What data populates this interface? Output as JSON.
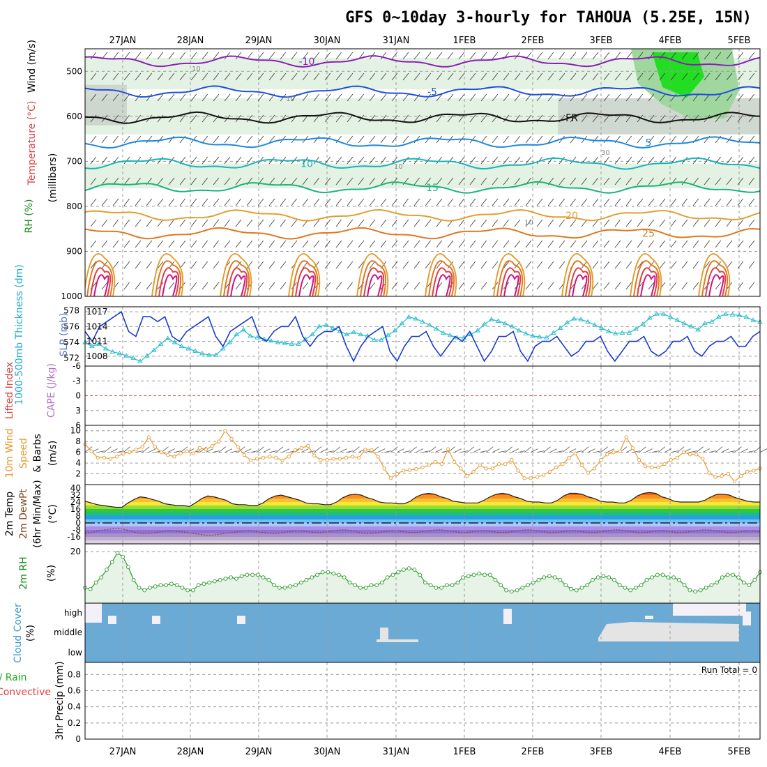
{
  "title": "GFS 0~10day 3-hourly for TAHOUA (5.25E, 15N)",
  "dates": [
    "27JAN",
    "28JAN",
    "29JAN",
    "30JAN",
    "31JAN",
    "1FEB",
    "2FEB",
    "3FEB",
    "4FEB",
    "5FEB"
  ],
  "colors": {
    "grid": "#999999",
    "rh_light": "#e4f2e4",
    "rh_mid": "#9fd79f",
    "rh_bright": "#22dd22",
    "rh_gray": "#c8cfc8",
    "slp": "#1a3acc",
    "thick": "#22bbcc",
    "wind10": "#e89a30",
    "rh2m": "#2a9a2a",
    "rh2m_fill": "#e6f3e6",
    "cloud": "#6aaad4",
    "cloud_empty": "#f3f0f8",
    "cloud_gap": "#e4e4e4",
    "zero_line": "#e05050"
  },
  "chart_data": [
    {
      "id": "upper_air",
      "type": "heatmap",
      "ylabel_parts": {
        "rh": "RH (%)",
        "mb": "(millibars)",
        "temp": "Temperature (°C)",
        "wind": "Wind (m/s)"
      },
      "ylim": [
        1000,
        450
      ],
      "yticks": [
        "500",
        "600",
        "700",
        "800",
        "900",
        "1000"
      ],
      "yticks_values": [
        500,
        600,
        700,
        800,
        900,
        1000
      ],
      "isotherms": [
        {
          "label": "-10",
          "color": "#8a1fb8",
          "level_mb": 478
        },
        {
          "label": "-5",
          "color": "#2050d8",
          "level_mb": 545
        },
        {
          "label": "FR",
          "color": "#111111",
          "level_mb": 603
        },
        {
          "label": "5",
          "color": "#1f88e0",
          "level_mb": 658
        },
        {
          "label": "10",
          "color": "#18b4b4",
          "level_mb": 705
        },
        {
          "label": "15",
          "color": "#18b478",
          "level_mb": 758
        },
        {
          "label": "20",
          "color": "#e0a030",
          "level_mb": 820
        },
        {
          "label": "25",
          "color": "#e07820",
          "level_mb": 860
        }
      ],
      "rh_labels": [
        "10",
        "10",
        "10",
        "30",
        "10"
      ]
    },
    {
      "id": "slp_thickness",
      "type": "line",
      "ylabel_left": "1000-500mb Thickness (dm)",
      "ylabel_right": "SLP (mb)",
      "yticks_left": [
        "578",
        "576",
        "574",
        "572"
      ],
      "yticks_right": [
        "1017",
        "1014",
        "1011",
        "1008"
      ],
      "thickness_ylim": [
        571,
        578.5
      ],
      "slp_ylim": [
        1006,
        1018
      ],
      "series": [
        {
          "id": "slp",
          "values": [
            1013,
            1011,
            1014,
            1015,
            1016,
            1017,
            1013,
            1012,
            1016,
            1016,
            1015,
            1016,
            1012,
            1011,
            1013,
            1014,
            1015,
            1016,
            1012,
            1010,
            1013,
            1014,
            1015,
            1016,
            1012,
            1011,
            1013,
            1014,
            1014,
            1016,
            1012,
            1010,
            1012,
            1013,
            1013,
            1014,
            1010,
            1007,
            1010,
            1012,
            1013,
            1014,
            1009,
            1007,
            1010,
            1012,
            1012,
            1013,
            1010,
            1008,
            1010,
            1012,
            1011,
            1013,
            1010,
            1007,
            1009,
            1012,
            1012,
            1013,
            1009,
            1007,
            1010,
            1011,
            1011,
            1012,
            1010,
            1008,
            1009,
            1011,
            1011,
            1012,
            1009,
            1007,
            1009,
            1011,
            1011,
            1012,
            1009,
            1008,
            1009,
            1011,
            1011,
            1012,
            1009,
            1008,
            1010,
            1011,
            1011,
            1012,
            1010,
            1010,
            1012,
            1013
          ]
        },
        {
          "id": "thickness",
          "values": [
            574.0,
            573.5,
            573.8,
            573.2,
            572.8,
            572.6,
            572.3,
            572.0,
            571.6,
            572.3,
            573.0,
            573.8,
            574.5,
            574.0,
            573.5,
            573.2,
            572.9,
            572.6,
            572.4,
            572.4,
            573.2,
            574.0,
            575.0,
            575.6,
            574.8,
            574.6,
            574.4,
            574.2,
            574.0,
            573.9,
            573.8,
            573.8,
            574.4,
            575.0,
            576.0,
            576.2,
            575.8,
            575.4,
            575.0,
            575.3,
            575.0,
            574.8,
            574.3,
            574.3,
            574.9,
            575.5,
            576.4,
            577.2,
            577.0,
            576.6,
            576.2,
            575.7,
            575.2,
            574.9,
            574.6,
            574.6,
            575.0,
            575.5,
            576.3,
            576.9,
            576.7,
            576.4,
            576.0,
            575.5,
            575.1,
            574.8,
            574.7,
            574.6,
            575.2,
            575.8,
            576.5,
            577.0,
            576.9,
            576.6,
            576.2,
            575.8,
            575.4,
            575.1,
            575.2,
            575.2,
            575.7,
            576.3,
            577.1,
            577.6,
            577.6,
            577.2,
            576.8,
            576.4,
            576.0,
            575.6,
            576.4,
            576.6,
            577.2,
            577.6,
            577.5,
            577.4,
            577.2,
            576.8,
            576.6
          ]
        }
      ]
    },
    {
      "id": "cape_li",
      "type": "line",
      "ylabel_li": "Lifted Index",
      "ylabel_cape": "CAPE (J/kg)",
      "yticks": [
        "-6",
        "-3",
        "0",
        "3",
        "6"
      ],
      "yticks_values": [
        -6,
        -3,
        0,
        3,
        6
      ],
      "ylim": [
        -6,
        6
      ]
    },
    {
      "id": "wind10m",
      "type": "line",
      "ylabel_parts": {
        "a": "10m Wind",
        "b": "Speed",
        "c": "& Barbs",
        "d": "(m/s)"
      },
      "yticks": [
        "10",
        "8",
        "6",
        "4",
        "2"
      ],
      "yticks_values": [
        10,
        8,
        6,
        4,
        2
      ],
      "ylim": [
        0,
        11
      ],
      "values": [
        7.5,
        6.2,
        5.0,
        5.0,
        4.8,
        5.2,
        5.8,
        6.0,
        6.5,
        7.0,
        8.8,
        7.0,
        6.0,
        5.5,
        5.2,
        5.8,
        6.2,
        5.8,
        6.8,
        6.5,
        7.2,
        8.0,
        10.0,
        8.5,
        7.0,
        5.5,
        4.5,
        4.8,
        5.0,
        5.2,
        5.0,
        4.5,
        5.2,
        6.4,
        6.8,
        7.2,
        5.4,
        4.6,
        4.6,
        4.8,
        4.8,
        5.0,
        5.2,
        5.0,
        6.5,
        6.4,
        5.2,
        3.0,
        1.2,
        2.0,
        2.6,
        2.7,
        2.9,
        3.2,
        3.6,
        4.2,
        3.8,
        6.6,
        4.2,
        3.0,
        1.6,
        2.4,
        3.6,
        3.0,
        3.0,
        3.8,
        3.8,
        4.6,
        2.6,
        1.2,
        1.2,
        1.4,
        1.8,
        2.4,
        3.2,
        3.8,
        5.0,
        5.8,
        3.6,
        2.2,
        3.0,
        4.6,
        5.6,
        6.0,
        6.2,
        8.8,
        6.8,
        4.6,
        3.4,
        3.2,
        3.2,
        3.8,
        4.6,
        5.0,
        6.0,
        5.6,
        5.6,
        4.8,
        2.2,
        1.4,
        1.6,
        2.0,
        0.6,
        1.6,
        2.4,
        2.6,
        3.0
      ]
    },
    {
      "id": "temp2m",
      "type": "area",
      "ylabel_parts": {
        "a": "2m Temp",
        "b": "2m DewPt",
        "c": "(6hr Min/Max)",
        "d": "(°C)"
      },
      "yticks": [
        "40",
        "32",
        "24",
        "16",
        "8",
        "0",
        "-8",
        "-16"
      ],
      "yticks_values": [
        40,
        32,
        24,
        16,
        8,
        0,
        -8,
        -16
      ],
      "ylim": [
        -24,
        44
      ],
      "temp": [
        25,
        23,
        21,
        20,
        19,
        18,
        18,
        23,
        27,
        30,
        29,
        27,
        25,
        22,
        21,
        20,
        20,
        19,
        23,
        28,
        31,
        30,
        28,
        26,
        22,
        21,
        21,
        20,
        20,
        23,
        28,
        31,
        32,
        30,
        28,
        26,
        23,
        22,
        22,
        21,
        21,
        24,
        29,
        32,
        33,
        32,
        29,
        27,
        24,
        23,
        23,
        22,
        22,
        25,
        30,
        33,
        34,
        33,
        30,
        28,
        25,
        24,
        23,
        23,
        23,
        26,
        30,
        33,
        34,
        33,
        30,
        28,
        25,
        24,
        24,
        23,
        23,
        26,
        31,
        34,
        34,
        33,
        30,
        28,
        25,
        24,
        24,
        23,
        23,
        26,
        31,
        34,
        35,
        34,
        30,
        28,
        25,
        24,
        24,
        24,
        24,
        26,
        30,
        33,
        33,
        32,
        29,
        27,
        25,
        24,
        24
      ],
      "dewpoint": [
        -12,
        -11,
        -9,
        -8,
        -7,
        -6,
        -7,
        -9,
        -11,
        -12,
        -12,
        -11,
        -10,
        -9,
        -9,
        -10,
        -11,
        -12,
        -13,
        -14,
        -14,
        -13,
        -12,
        -11,
        -10,
        -9,
        -9,
        -10,
        -11,
        -12,
        -12,
        -11,
        -10,
        -9,
        -9,
        -10,
        -11,
        -11,
        -10,
        -9,
        -8,
        -8,
        -9,
        -11,
        -12,
        -12,
        -11,
        -10,
        -9,
        -9,
        -10,
        -11,
        -11,
        -10,
        -9,
        -8,
        -8,
        -9,
        -10,
        -11,
        -11,
        -10,
        -9,
        -9,
        -10,
        -11,
        -11,
        -10,
        -9,
        -8,
        -8,
        -9,
        -10,
        -11,
        -11,
        -10,
        -9,
        -9,
        -10,
        -11,
        -11,
        -10,
        -9,
        -8,
        -8,
        -9,
        -10,
        -11,
        -11,
        -10,
        -9,
        -9,
        -10,
        -11,
        -11,
        -10,
        -9,
        -8,
        -8,
        -9,
        -10,
        -11,
        -11,
        -10,
        -9,
        -9,
        -10
      ]
    },
    {
      "id": "rh2m",
      "type": "line",
      "ylabel_parts": {
        "a": "2m RH",
        "b": "(%)"
      },
      "yticks": [
        "20"
      ],
      "yticks_values": [
        20
      ],
      "ylim": [
        0,
        23
      ],
      "values": [
        6,
        5.5,
        8,
        10,
        13,
        16,
        19.5,
        18,
        14,
        9,
        6,
        5,
        6,
        6.5,
        7,
        7,
        7.5,
        7,
        6,
        5,
        5,
        7,
        7.5,
        8,
        8.5,
        9,
        9.5,
        10,
        9.5,
        10.5,
        11,
        11,
        11,
        10,
        9,
        7,
        6,
        6,
        6.5,
        7,
        8,
        9,
        10,
        11,
        12,
        12,
        11.5,
        11,
        10,
        8,
        7,
        6,
        6,
        7,
        7,
        8,
        10,
        11,
        12,
        13,
        13.5,
        13,
        11,
        8,
        7,
        6,
        6,
        7,
        7,
        8,
        10,
        10.5,
        11,
        11.5,
        11,
        11,
        9,
        7,
        5,
        4.5,
        5,
        6,
        7,
        8,
        9,
        10,
        10.5,
        10,
        9,
        7,
        5.5,
        5,
        6,
        7,
        9,
        10,
        10.5,
        10,
        9,
        7,
        6,
        5,
        6,
        7,
        9,
        10,
        11,
        11,
        10,
        10,
        9,
        7,
        5,
        4.5,
        5,
        6,
        7,
        8,
        10,
        11,
        11,
        10,
        8,
        7,
        9,
        12
      ]
    },
    {
      "id": "cloud",
      "type": "heatmap",
      "ylabel_parts": {
        "a": "Cloud Cover",
        "b": "(%)"
      },
      "levels": [
        "high",
        "middle",
        "low"
      ]
    },
    {
      "id": "precip",
      "type": "bar",
      "ylabel_parts": {
        "a": "Total / Rain",
        "b": "Convective",
        "c": "3hr Precip (mm)"
      },
      "yticks": [
        "0.8",
        "0.6",
        "0.4",
        "0.2",
        "0"
      ],
      "yticks_values": [
        0.8,
        0.6,
        0.4,
        0.2,
        0
      ],
      "ylim": [
        0,
        0.95
      ],
      "run_total": "Run Total = 0",
      "values": []
    }
  ]
}
